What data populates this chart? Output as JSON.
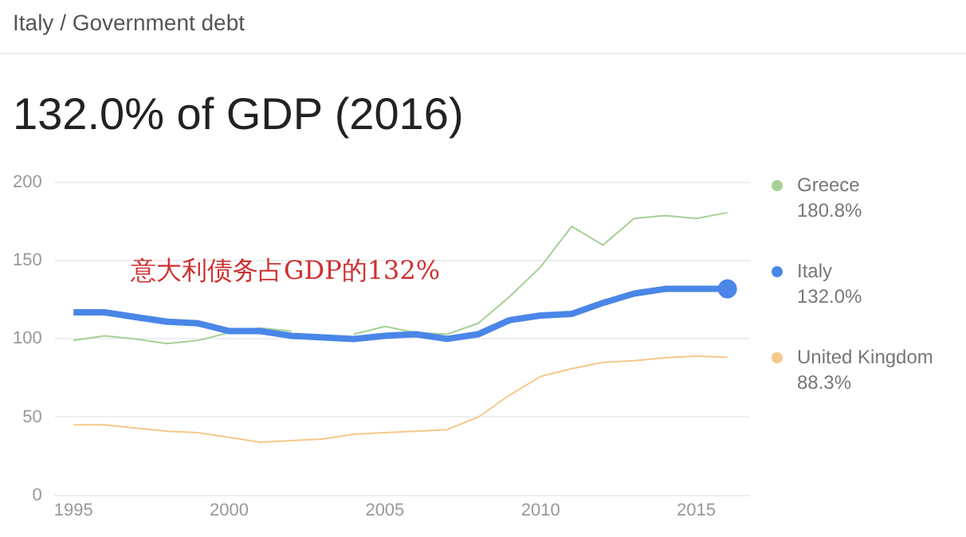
{
  "chart_data": {
    "type": "line",
    "subtitle": "Italy / Government debt",
    "title": "132.0% of GDP (2016)",
    "annotations": [
      "意大利债务占GDP的132%",
      "180.8%",
      "132.0%",
      "88.3%"
    ],
    "x": [
      1995,
      1996,
      1997,
      1998,
      1999,
      2000,
      2001,
      2002,
      2003,
      2004,
      2005,
      2006,
      2007,
      2008,
      2009,
      2010,
      2011,
      2012,
      2013,
      2014,
      2015,
      2016
    ],
    "series": [
      {
        "name": "Greece",
        "color": "#a8cf96",
        "values": [
          99,
          102,
          100,
          97,
          99,
          104,
          107,
          105,
          null,
          103,
          108,
          104,
          103,
          110,
          127,
          146,
          172,
          160,
          177,
          179,
          177,
          180.8
        ]
      },
      {
        "name": "Italy",
        "color": "#4a86e8",
        "values": [
          117,
          117,
          114,
          111,
          110,
          105,
          105,
          102,
          101,
          100,
          102,
          103,
          100,
          103,
          112,
          115,
          116,
          123,
          129,
          132,
          132,
          132.0
        ]
      },
      {
        "name": "United Kingdom",
        "color": "#f6c88a",
        "values": [
          45,
          45,
          43,
          41,
          40,
          37,
          34,
          35,
          36,
          39,
          40,
          41,
          42,
          50,
          64,
          76,
          81,
          85,
          86,
          88,
          89,
          88.3
        ]
      },
      {
        "type": "scatter",
        "color": "#4a86e8",
        "x": [
          2016
        ],
        "values": [
          132.0
        ]
      }
    ],
    "xlim": [
      1994.4,
      2016.7
    ],
    "xticks": [
      1995,
      2000,
      2005,
      2010,
      2015
    ],
    "ylim": [
      0,
      200
    ],
    "yticks": [
      0,
      50,
      100,
      150,
      200
    ],
    "grid": "y",
    "legend": "right",
    "line_style": "solid"
  }
}
